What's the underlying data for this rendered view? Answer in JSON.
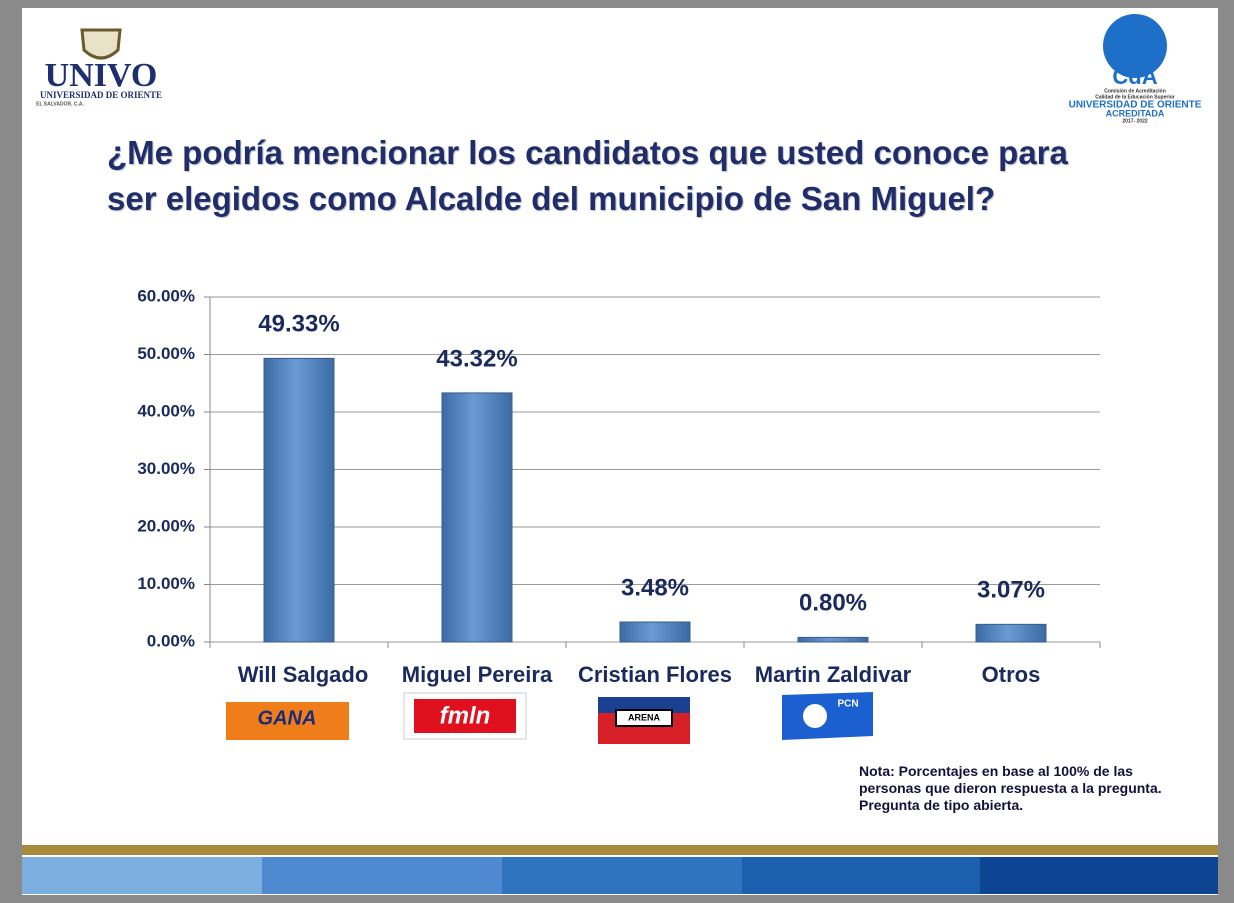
{
  "logos": {
    "univo": "UNIVO",
    "univo_sub": "UNIVERSIDAD DE ORIENTE",
    "univo_country": "EL SALVADOR, C.A.",
    "cda": "CdA",
    "cda_line1": "Comisión de Acreditación",
    "cda_line2": "Calidad de la Educación Superior",
    "cda_univ": "UNIVERSIDAD DE ORIENTE",
    "cda_status": "ACREDITADA",
    "cda_years": "2017- 2022"
  },
  "party_logos": [
    "GANA",
    "fmln",
    "ARENA",
    "PCN"
  ],
  "note": "Nota: Porcentajes en base al 100% de las personas que dieron respuesta a la pregunta. Pregunta de tipo abierta.",
  "chart_data": {
    "type": "bar",
    "title": [
      "¿Me podría mencionar los candidatos que usted conoce para",
      "ser elegidos como Alcalde del municipio de San Miguel?"
    ],
    "categories": [
      "Will Salgado",
      "Miguel Pereira",
      "Cristian Flores",
      "Martin Zaldivar",
      "Otros"
    ],
    "values": [
      49.33,
      43.32,
      3.48,
      0.8,
      3.07
    ],
    "value_labels": [
      "49.33%",
      "43.32%",
      "3.48%",
      "0.80%",
      "3.07%"
    ],
    "color": "#4f81bd",
    "ylim": [
      0,
      60
    ],
    "yticks": [
      {
        "value": 0,
        "label": "0.00%"
      },
      {
        "value": 10,
        "label": "10.00%"
      },
      {
        "value": 20,
        "label": "20.00%"
      },
      {
        "value": 30,
        "label": "30.00%"
      },
      {
        "value": 40,
        "label": "40.00%"
      },
      {
        "value": 50,
        "label": "50.00%"
      },
      {
        "value": 60,
        "label": "60.00%"
      }
    ],
    "grid": true
  }
}
